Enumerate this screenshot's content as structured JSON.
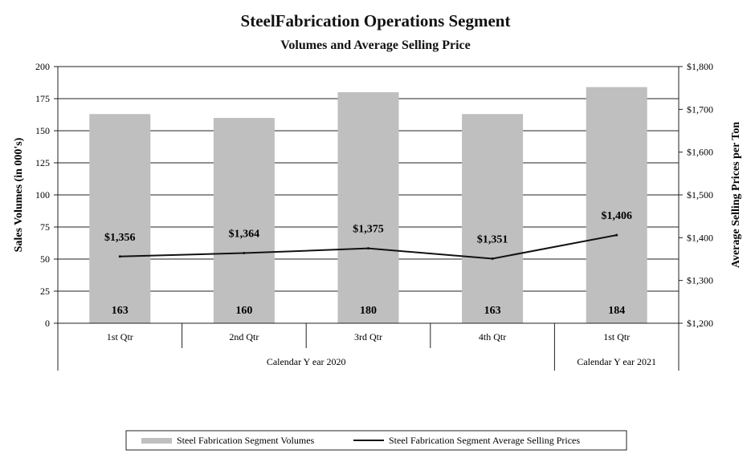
{
  "chart_data": {
    "type": "bar",
    "title": "SteelFabrication  Operations Segment",
    "subtitle": "Volumes and Average Selling Price",
    "categories": [
      "1st Qtr",
      "2nd Qtr",
      "3rd Qtr",
      "4th Qtr",
      "1st Qtr"
    ],
    "groups": [
      {
        "label": "Calendar Y ear 2020",
        "span": 4
      },
      {
        "label": "Calendar Y ear 2021",
        "span": 1
      }
    ],
    "series": [
      {
        "name": "Steel Fabrication Segment Volumes",
        "type": "bar",
        "axis": "left",
        "values": [
          163,
          160,
          180,
          163,
          184
        ],
        "labels": [
          "163",
          "160",
          "180",
          "163",
          "184"
        ]
      },
      {
        "name": "Steel Fabrication Segment Average Selling Prices",
        "type": "line",
        "axis": "right",
        "values": [
          1356,
          1364,
          1375,
          1351,
          1406
        ],
        "labels": [
          "$1,356",
          "$1,364",
          "$1,375",
          "$1,351",
          "$1,406"
        ]
      }
    ],
    "ylabel": "Sales Volumes (in 000's)",
    "y2label": "Average Selling Prices per Ton",
    "ylim": [
      0,
      200
    ],
    "yticks": [
      0,
      25,
      50,
      75,
      100,
      125,
      150,
      175,
      200
    ],
    "y2lim": [
      1200,
      1800
    ],
    "y2ticks": [
      "$1,200",
      "$1,300",
      "$1,400",
      "$1,500",
      "$1,600",
      "$1,700",
      "$1,800"
    ],
    "grid": true,
    "legend_position": "bottom",
    "colors": {
      "bars": "#bfbfbf",
      "line": "#111111",
      "grid": "#222222"
    }
  }
}
